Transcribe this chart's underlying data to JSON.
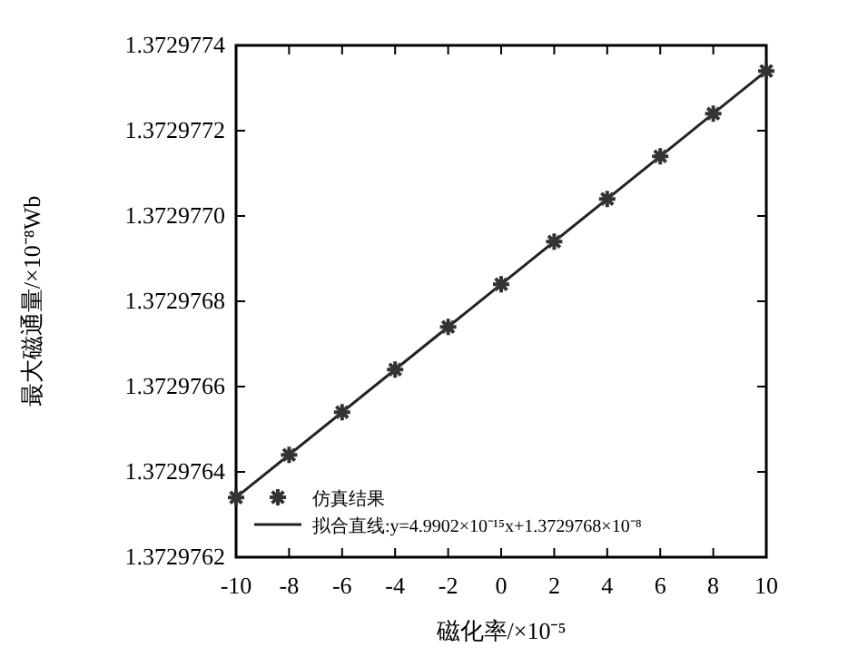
{
  "chart_data": {
    "type": "scatter",
    "xlabel": "磁化率/×10⁻⁵",
    "ylabel": "最大磁通量/×10⁻⁸Wb",
    "x": [
      -10,
      -8,
      -6,
      -4,
      -2,
      0,
      2,
      4,
      6,
      8,
      10
    ],
    "series": [
      {
        "name": "仿真结果",
        "marker": "cross",
        "color": "#333333",
        "values": [
          1.37297634,
          1.37297644,
          1.37297654,
          1.37297664,
          1.37297674,
          1.37297684,
          1.37297694,
          1.37297704,
          1.37297714,
          1.37297724,
          1.37297734
        ]
      },
      {
        "name": "拟合直线:y=4.9902×10⁻¹⁵x+1.3729768×10⁻⁸",
        "type": "line",
        "line_style": "solid",
        "color": "#222222",
        "x": [
          -10,
          10
        ],
        "values": [
          1.37297634,
          1.37297734
        ]
      }
    ],
    "xlim": [
      -10,
      10
    ],
    "ylim": [
      1.3729762,
      1.3729774
    ],
    "xticks": [
      -10,
      -8,
      -6,
      -4,
      -2,
      0,
      2,
      4,
      6,
      8,
      10
    ],
    "yticks": [
      1.3729762,
      1.3729764,
      1.3729766,
      1.3729768,
      {
        "value": 1.372977,
        "label": "1.3729770"
      },
      1.3729772,
      1.3729774
    ],
    "grid": false,
    "legend": "bottom left"
  }
}
